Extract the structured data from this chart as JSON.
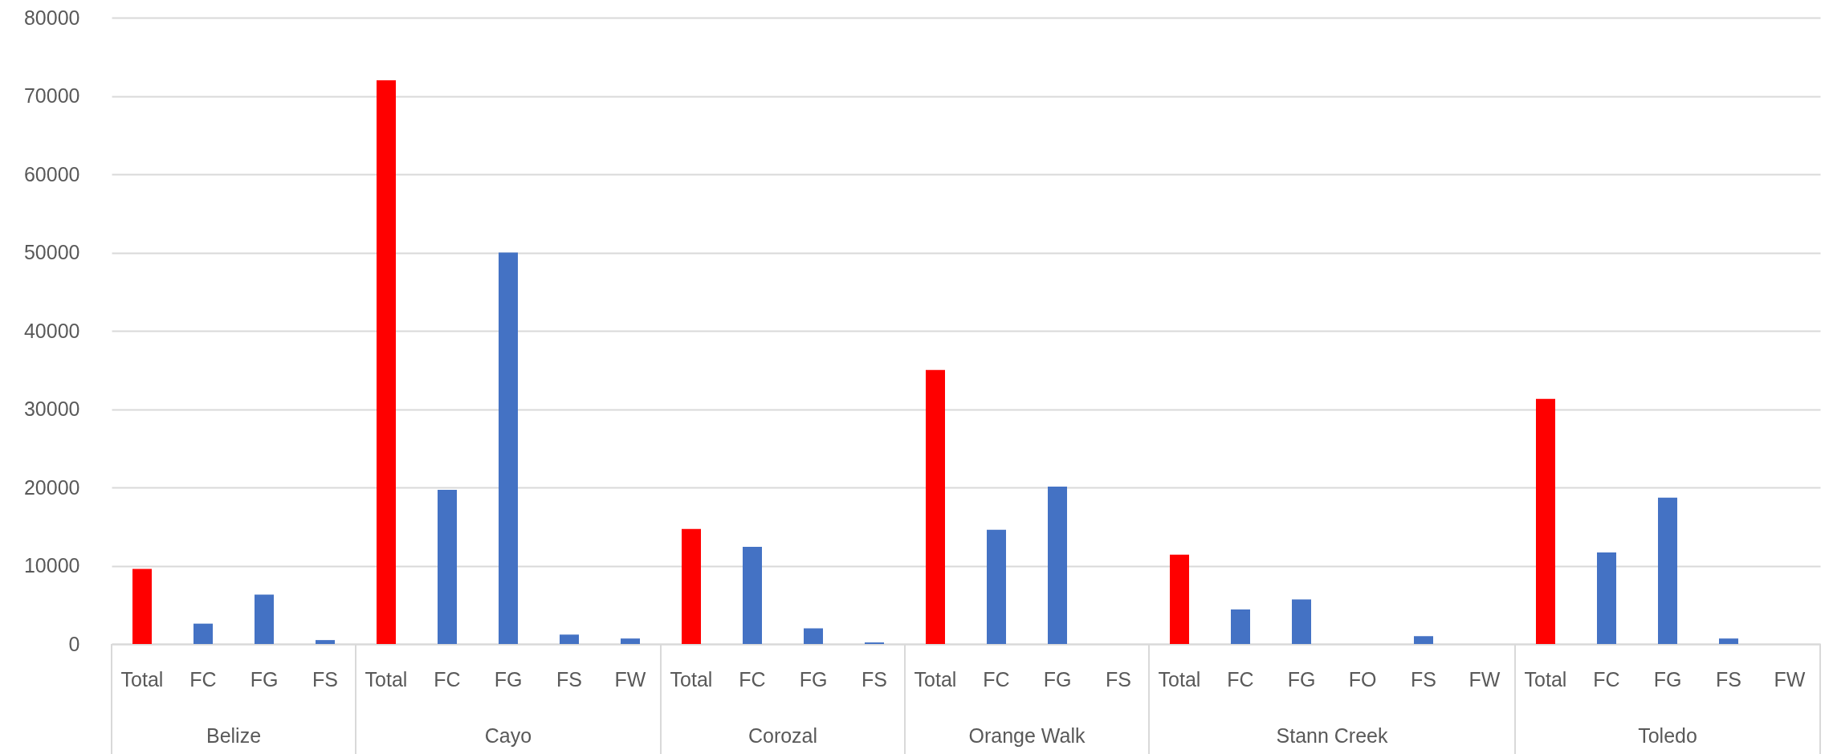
{
  "chart_data": {
    "type": "bar",
    "categories": [
      "Total",
      "FC",
      "FG",
      "FS",
      "Total",
      "FC",
      "FG",
      "FS",
      "FW",
      "Total",
      "FC",
      "FG",
      "FS",
      "Total",
      "FC",
      "FG",
      "FS",
      "Total",
      "FC",
      "FG",
      "FO",
      "FS",
      "FW",
      "Total",
      "FC",
      "FG",
      "FS",
      "FW"
    ],
    "values": [
      9600,
      2600,
      6300,
      500,
      72000,
      19700,
      50000,
      1200,
      700,
      14700,
      12400,
      2000,
      200,
      35000,
      14600,
      20100,
      0,
      11400,
      4400,
      5700,
      0,
      1000,
      0,
      31300,
      11700,
      18700,
      700,
      0
    ],
    "colors": [
      "#ff0000",
      "#4472c4",
      "#4472c4",
      "#4472c4",
      "#ff0000",
      "#4472c4",
      "#4472c4",
      "#4472c4",
      "#4472c4",
      "#ff0000",
      "#4472c4",
      "#4472c4",
      "#4472c4",
      "#ff0000",
      "#4472c4",
      "#4472c4",
      "#4472c4",
      "#ff0000",
      "#4472c4",
      "#4472c4",
      "#4472c4",
      "#4472c4",
      "#4472c4",
      "#ff0000",
      "#4472c4",
      "#4472c4",
      "#4472c4",
      "#4472c4"
    ],
    "annotations": [
      "Belize",
      "Cayo",
      "Corozal",
      "Orange Walk",
      "Stann Creek",
      "Toledo"
    ],
    "ylim": [
      0,
      80000
    ],
    "yticks": [
      0,
      10000,
      20000,
      30000,
      40000,
      50000,
      60000,
      70000,
      80000
    ],
    "grid": "y"
  }
}
